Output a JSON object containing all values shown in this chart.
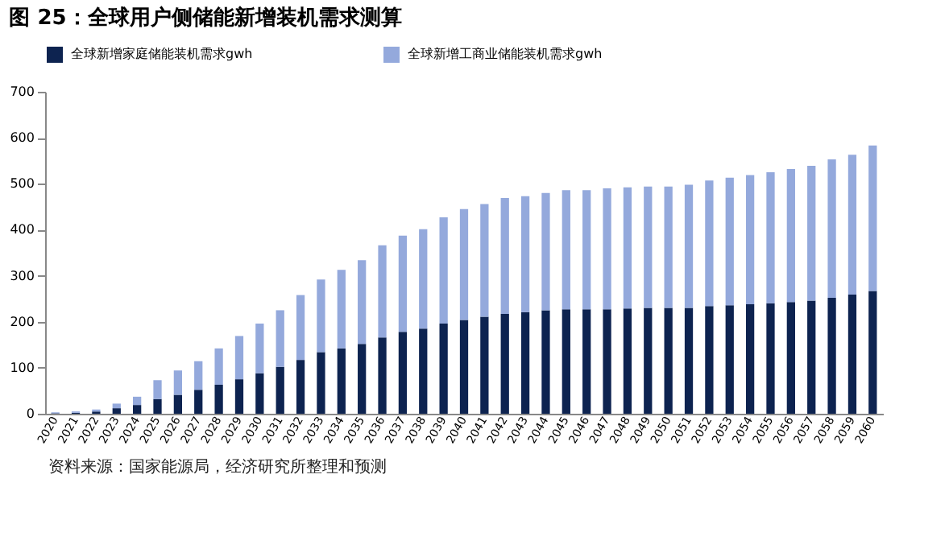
{
  "chart_data": {
    "type": "bar",
    "title": "图 25：全球用户侧储能新增装机需求测算",
    "stacked": true,
    "legend": "top",
    "grid": false,
    "categories": [
      "2020",
      "2021",
      "2022",
      "2023",
      "2024",
      "2025",
      "2026",
      "2027",
      "2028",
      "2029",
      "2030",
      "2031",
      "2032",
      "2033",
      "2034",
      "2035",
      "2036",
      "2037",
      "2038",
      "2039",
      "2040",
      "2041",
      "2042",
      "2043",
      "2044",
      "2045",
      "2046",
      "2047",
      "2048",
      "2049",
      "2050",
      "2051",
      "2052",
      "2053",
      "2054",
      "2055",
      "2056",
      "2057",
      "2058",
      "2059",
      "2060"
    ],
    "series": [
      {
        "name": "全球新增家庭储能装机需求gwh",
        "color": "#0d2350",
        "values": [
          1,
          2,
          5,
          12,
          19,
          32,
          41,
          52,
          63,
          75,
          88,
          102,
          117,
          134,
          142,
          152,
          166,
          178,
          185,
          196,
          204,
          211,
          217,
          221,
          225,
          227,
          227,
          227,
          229,
          230,
          230,
          230,
          234,
          236,
          238,
          240,
          243,
          246,
          252,
          259,
          267
        ]
      },
      {
        "name": "全球新增工商业储能装机需求gwh",
        "color": "#94a9dc",
        "values": [
          2,
          3,
          4,
          10,
          18,
          41,
          53,
          62,
          79,
          94,
          108,
          123,
          141,
          158,
          171,
          182,
          200,
          209,
          216,
          231,
          241,
          245,
          252,
          252,
          255,
          259,
          259,
          263,
          263,
          264,
          264,
          268,
          273,
          277,
          281,
          285,
          289,
          293,
          301,
          304,
          316
        ]
      }
    ],
    "ylim": [
      0,
      700
    ],
    "yticks": [
      0,
      100,
      200,
      300,
      400,
      500,
      600,
      700
    ],
    "annotations": [
      "资料来源：国家能源局，经济研究所整理和预测"
    ]
  }
}
